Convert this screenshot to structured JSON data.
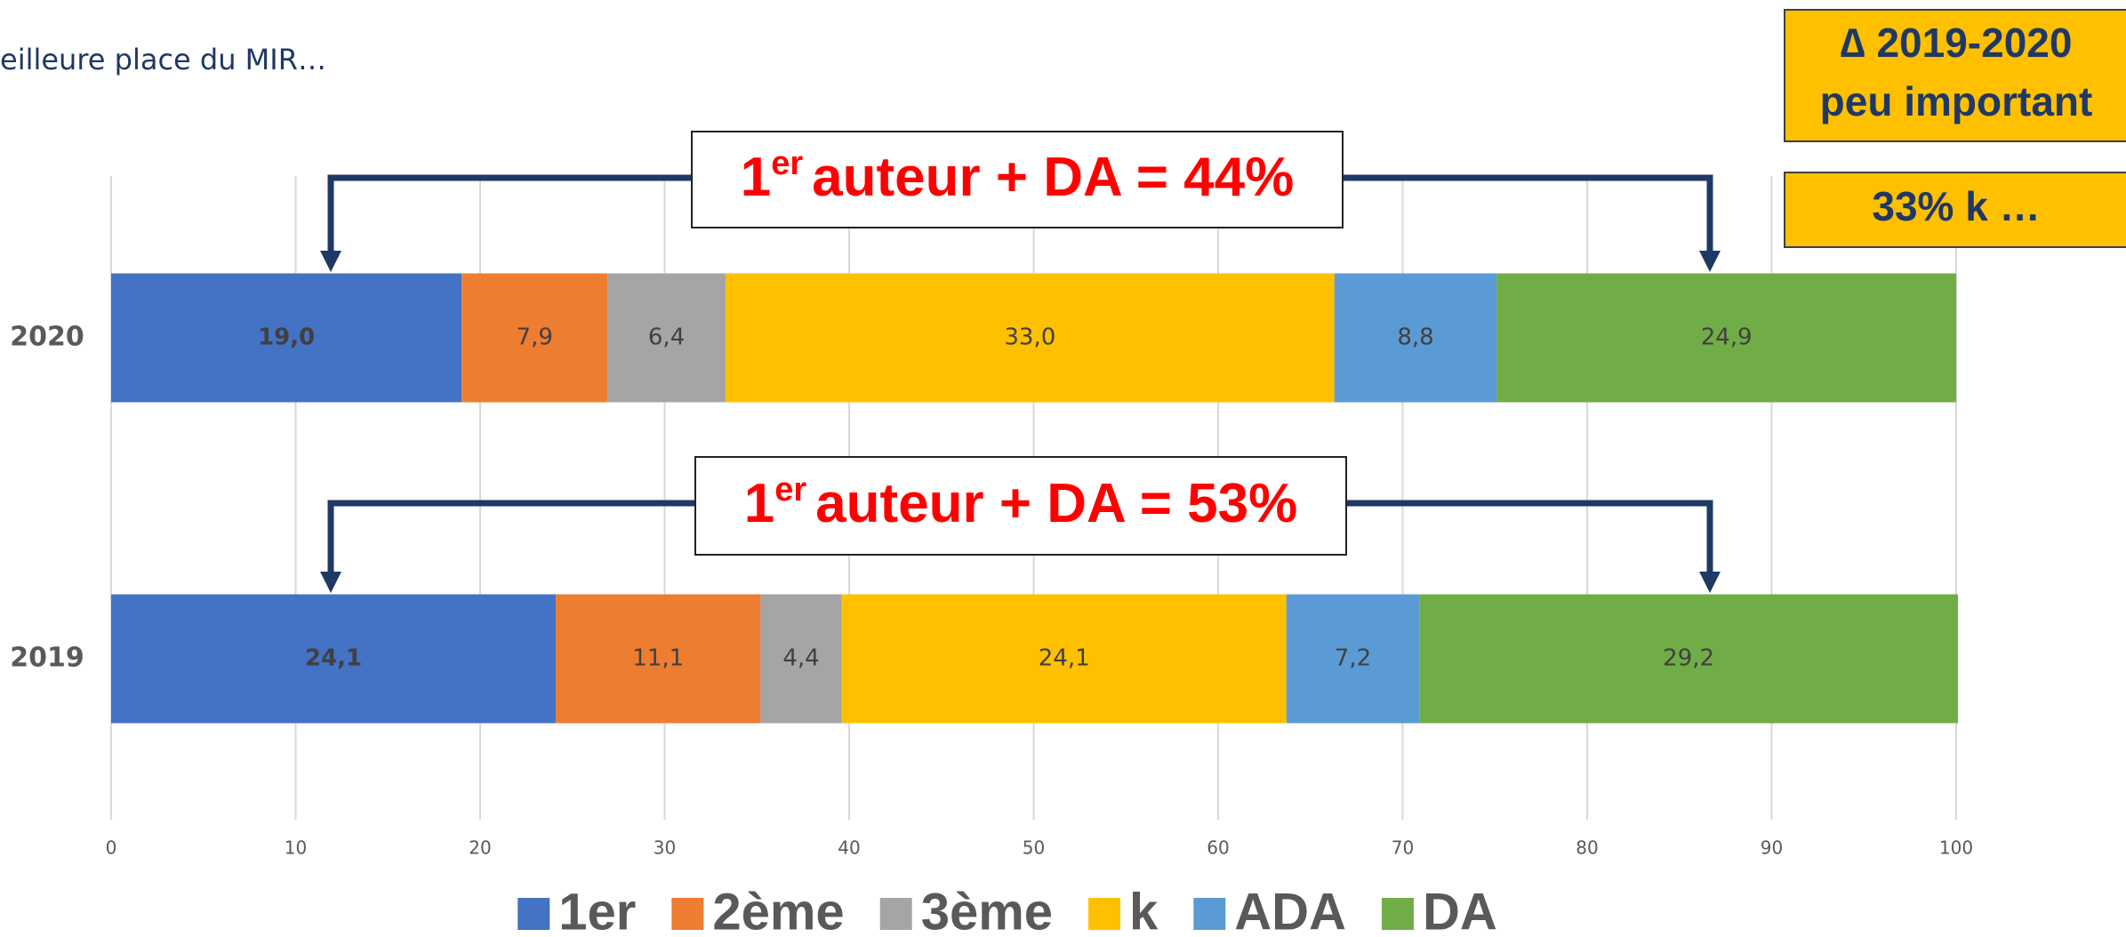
{
  "chart_data": {
    "type": "stacked_barh",
    "title": "eilleure place du MIR…",
    "categories": [
      "2020",
      "2019"
    ],
    "series": [
      {
        "name": "1er",
        "color": "#4472c4",
        "values": [
          19.0,
          24.1
        ],
        "value_labels": [
          "19,0",
          "24,1"
        ]
      },
      {
        "name": "2ème",
        "color": "#ed7d31",
        "values": [
          7.9,
          11.1
        ],
        "value_labels": [
          "7,9",
          "11,1"
        ]
      },
      {
        "name": "3ème",
        "color": "#a5a5a5",
        "values": [
          6.4,
          4.4
        ],
        "value_labels": [
          "6,4",
          "4,4"
        ]
      },
      {
        "name": "k",
        "color": "#ffc000",
        "values": [
          33.0,
          24.1
        ],
        "value_labels": [
          "33,0",
          "24,1"
        ]
      },
      {
        "name": "ADA",
        "color": "#5b9bd5",
        "values": [
          8.8,
          7.2
        ],
        "value_labels": [
          "8,8",
          "7,2"
        ]
      },
      {
        "name": "DA",
        "color": "#70ad47",
        "values": [
          24.9,
          29.2
        ],
        "value_labels": [
          "24,9",
          "29,2"
        ]
      }
    ],
    "xlim": [
      0,
      100
    ],
    "xticks": [
      0,
      10,
      20,
      30,
      40,
      50,
      60,
      70,
      80,
      90,
      100
    ],
    "grid": true,
    "annotations": [
      {
        "parts": [
          "1",
          "er",
          "auteur + DA = 44%"
        ]
      },
      {
        "parts": [
          "1",
          "er",
          "auteur + DA = 53%"
        ]
      }
    ],
    "notes": [
      [
        "∆ 2019-2020",
        "peu important"
      ],
      [
        "33% k …"
      ]
    ]
  }
}
